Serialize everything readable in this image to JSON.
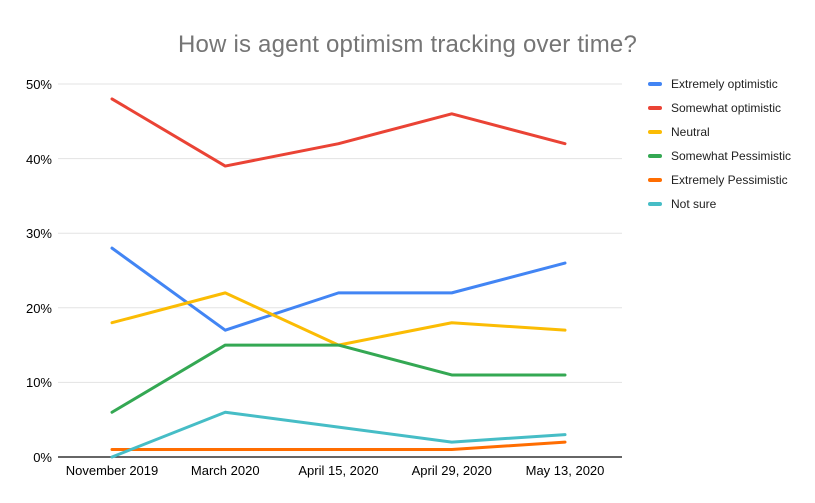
{
  "chart_data": {
    "type": "line",
    "title": "How is agent optimism tracking over time?",
    "categories": [
      "November 2019",
      "March 2020",
      "April 15, 2020",
      "April 29, 2020",
      "May 13, 2020"
    ],
    "series": [
      {
        "name": "Extremely optimistic",
        "color": "#4285F4",
        "values": [
          28,
          17,
          22,
          22,
          26
        ]
      },
      {
        "name": "Somewhat optimistic",
        "color": "#EA4335",
        "values": [
          48,
          39,
          42,
          46,
          42
        ]
      },
      {
        "name": "Neutral",
        "color": "#FBBC04",
        "values": [
          18,
          22,
          15,
          18,
          17
        ]
      },
      {
        "name": "Somewhat Pessimistic",
        "color": "#34A853",
        "values": [
          6,
          15,
          15,
          11,
          11
        ]
      },
      {
        "name": "Extremely Pessimistic",
        "color": "#FF6D01",
        "values": [
          1,
          1,
          1,
          1,
          2
        ]
      },
      {
        "name": "Not sure",
        "color": "#46BDC6",
        "values": [
          0,
          6,
          4,
          2,
          3
        ]
      }
    ],
    "y_ticks": [
      "0%",
      "10%",
      "20%",
      "30%",
      "40%",
      "50%"
    ],
    "ylim": [
      0,
      50
    ],
    "grid": true,
    "legend_position": "right",
    "xlabel": "",
    "ylabel": "",
    "colors": {
      "title_text": "#757575",
      "axis_text": "#000000",
      "gridline": "#e3e3e3",
      "axis_line": "#333333",
      "background": "#ffffff"
    }
  }
}
